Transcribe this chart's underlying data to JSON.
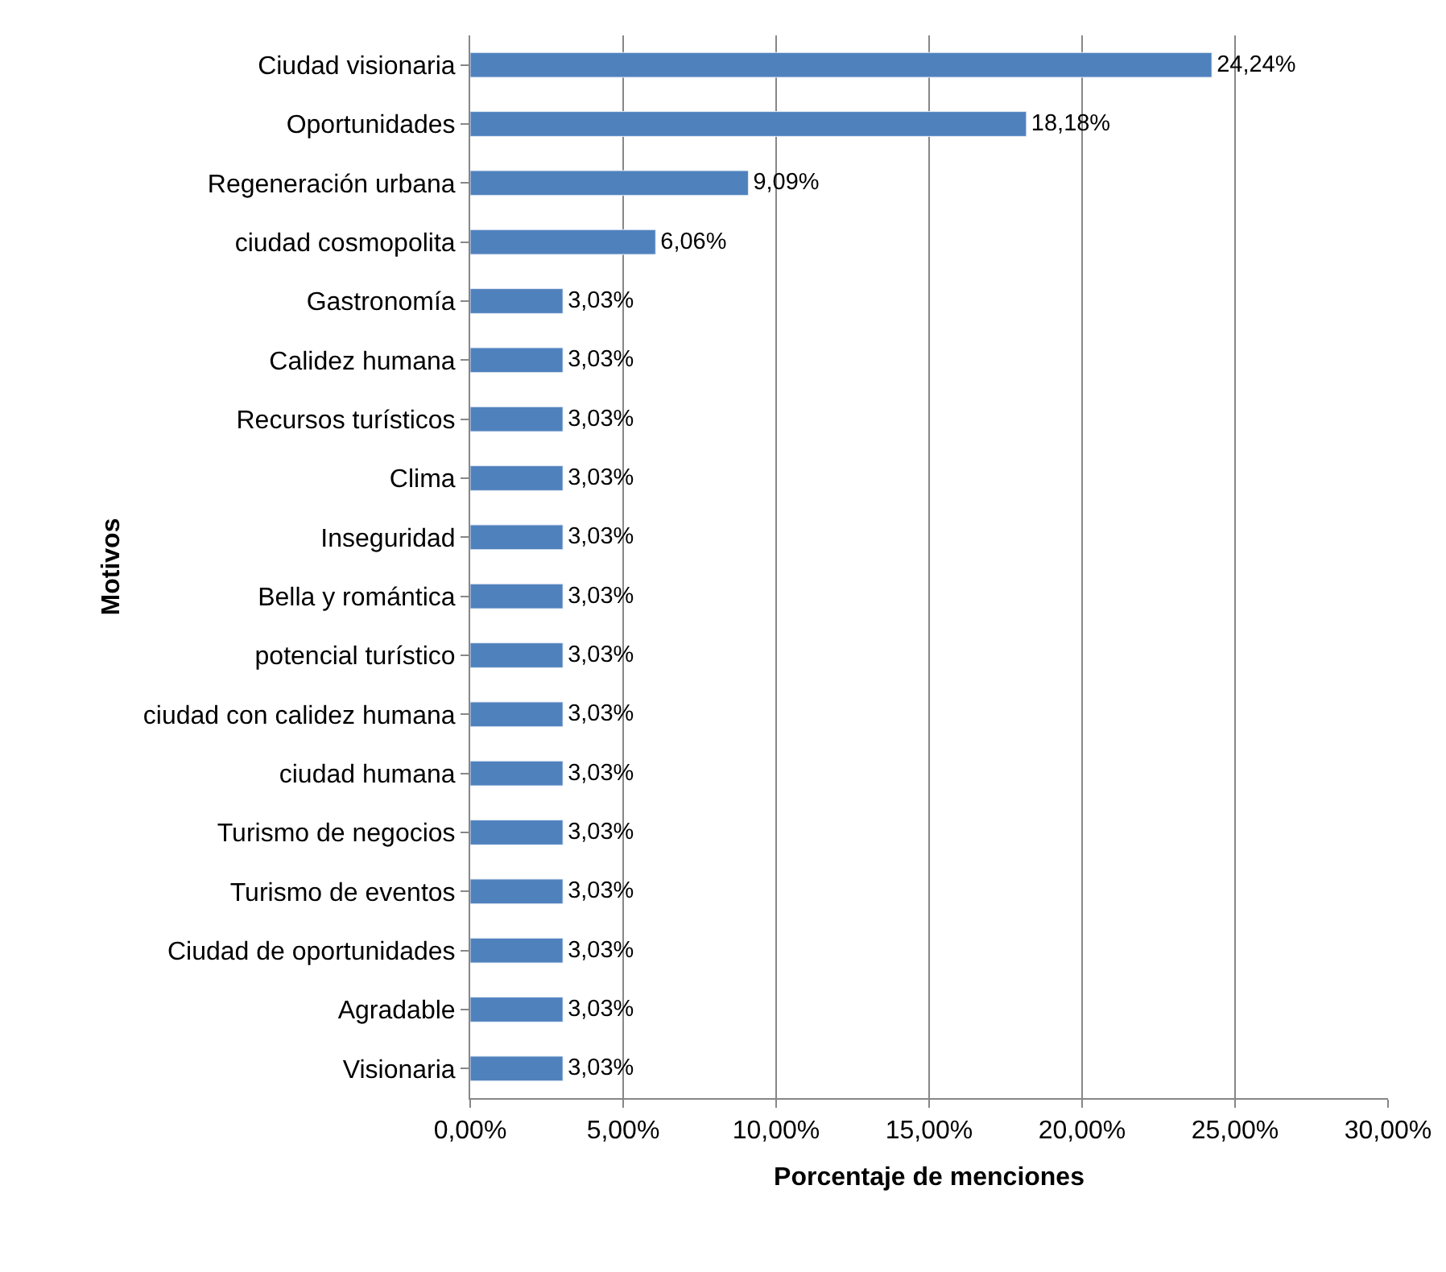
{
  "chart_data": {
    "type": "bar",
    "orientation": "horizontal",
    "xlabel": "Porcentaje de menciones",
    "ylabel": "Motivos",
    "categories": [
      "Ciudad visionaria",
      "Oportunidades",
      "Regeneración urbana",
      "ciudad cosmopolita",
      "Gastronomía",
      "Calidez humana",
      "Recursos turísticos",
      "Clima",
      "Inseguridad",
      "Bella y romántica",
      "potencial turístico",
      "ciudad con calidez humana",
      "ciudad humana",
      "Turismo de negocios",
      "Turismo de eventos",
      "Ciudad de oportunidades",
      "Agradable",
      "Visionaria"
    ],
    "values": [
      24.24,
      18.18,
      9.09,
      6.06,
      3.03,
      3.03,
      3.03,
      3.03,
      3.03,
      3.03,
      3.03,
      3.03,
      3.03,
      3.03,
      3.03,
      3.03,
      3.03,
      3.03
    ],
    "value_labels": [
      "24,24%",
      "18,18%",
      "9,09%",
      "6,06%",
      "3,03%",
      "3,03%",
      "3,03%",
      "3,03%",
      "3,03%",
      "3,03%",
      "3,03%",
      "3,03%",
      "3,03%",
      "3,03%",
      "3,03%",
      "3,03%",
      "3,03%",
      "3,03%"
    ],
    "color": "#4f81bd",
    "xlim": [
      0,
      30
    ],
    "xticks": [
      {
        "value": 0,
        "label": "0,00%"
      },
      {
        "value": 5,
        "label": "5,00%"
      },
      {
        "value": 10,
        "label": "10,00%"
      },
      {
        "value": 15,
        "label": "15,00%"
      },
      {
        "value": 20,
        "label": "20,00%"
      },
      {
        "value": 25,
        "label": "25,00%"
      },
      {
        "value": 30,
        "label": "30,00%"
      }
    ],
    "grid": "x",
    "legend": false
  }
}
